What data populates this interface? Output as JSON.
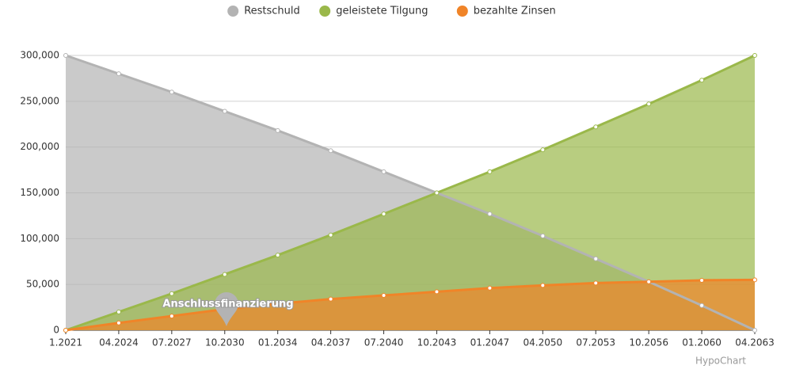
{
  "chart_data": {
    "type": "area",
    "categories": [
      "1.2021",
      "04.2024",
      "07.2027",
      "10.2030",
      "01.2034",
      "04.2037",
      "07.2040",
      "10.2043",
      "01.2047",
      "04.2050",
      "07.2053",
      "10.2056",
      "01.2060",
      "04.2063"
    ],
    "series": [
      {
        "name": "Restschuld",
        "color": "#b3b3b3",
        "values": [
          300000,
          280000,
          260000,
          239000,
          218000,
          196000,
          173000,
          150000,
          127000,
          103000,
          78000,
          53000,
          27000,
          0
        ]
      },
      {
        "name": "geleistete Tilgung",
        "color": "#9ab84a",
        "values": [
          0,
          20000,
          40000,
          61000,
          82000,
          104000,
          127000,
          150000,
          173000,
          197000,
          222000,
          247000,
          273000,
          300000
        ]
      },
      {
        "name": "bezahlte Zinsen",
        "color": "#f08428",
        "values": [
          0,
          8000,
          15500,
          23000,
          29000,
          34000,
          38000,
          42000,
          46000,
          49000,
          51500,
          53000,
          54500,
          55000
        ]
      }
    ],
    "ylim": [
      0,
      300000
    ],
    "yticks": [
      0,
      {
        "value": 50000,
        "label": "50,000"
      },
      {
        "value": 100000,
        "label": "100,000"
      },
      {
        "value": 150000,
        "label": "150,000"
      },
      {
        "value": 200000,
        "label": "200,000"
      },
      {
        "value": 250000,
        "label": "250,000"
      },
      {
        "value": 300000,
        "label": "300,000"
      }
    ],
    "grid": true,
    "legend": "top",
    "annotation": "Anschlussfinanzierung",
    "credit": "HypoChart"
  }
}
